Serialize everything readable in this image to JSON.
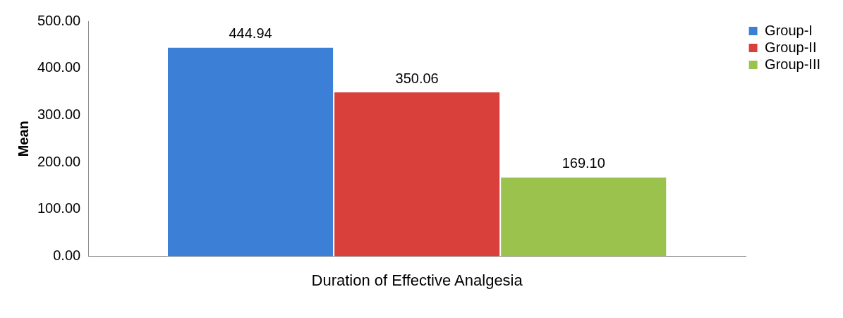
{
  "chart_data": {
    "type": "bar",
    "ylabel": "Mean",
    "categories": [
      "Duration of Effective Analgesia"
    ],
    "series": [
      {
        "name": "Group-I",
        "color": "#3c7fd6",
        "values": [
          444.94
        ],
        "value_labels": [
          "444.94"
        ]
      },
      {
        "name": "Group-II",
        "color": "#d9403b",
        "values": [
          350.06
        ],
        "value_labels": [
          "350.06"
        ]
      },
      {
        "name": "Group-III",
        "color": "#9bc24c",
        "values": [
          169.1
        ],
        "value_labels": [
          "169.10"
        ]
      }
    ],
    "ylim": [
      0,
      500
    ],
    "yticks": [
      {
        "value": 0,
        "label": "0.00"
      },
      {
        "value": 100,
        "label": "100.00"
      },
      {
        "value": 200,
        "label": "200.00"
      },
      {
        "value": 300,
        "label": "300.00"
      },
      {
        "value": 400,
        "label": "400.00"
      },
      {
        "value": 500,
        "label": "500.00"
      }
    ],
    "grid": false,
    "legend": "top right"
  }
}
